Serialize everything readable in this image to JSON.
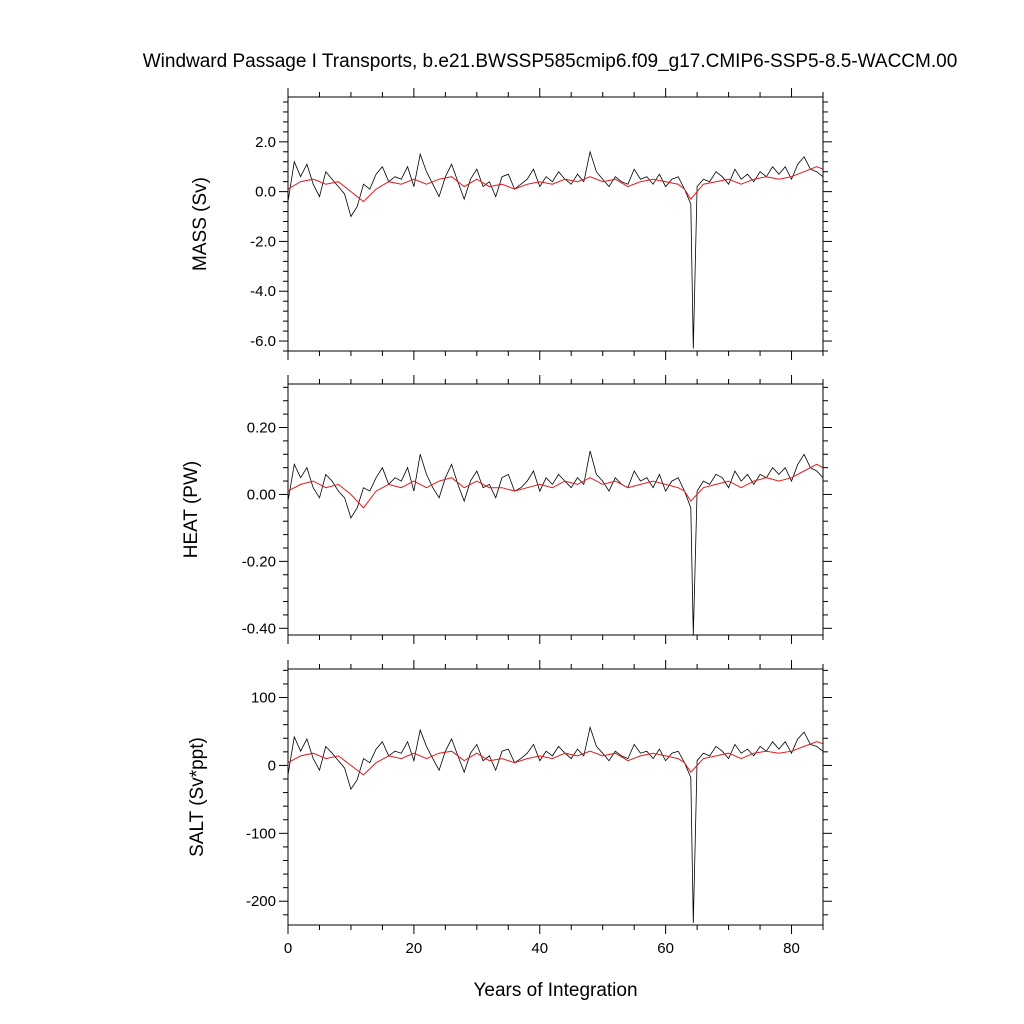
{
  "chart_data": [
    {
      "type": "line",
      "title": "Windward Passage I Transports, b.e21.BWSSP585cmip6.f09_g17.CMIP6-SSP5-8.5-WACCM.00",
      "xlabel": "",
      "ylabel": "MASS (Sv)",
      "xlim": [
        0,
        85
      ],
      "ylim": [
        -6.4,
        3.8
      ],
      "xticks": [
        0,
        20,
        40,
        60,
        80
      ],
      "xtick_labels": [
        "",
        "",
        "",
        "",
        ""
      ],
      "yticks": [
        2.0,
        0.0,
        -2.0,
        -4.0,
        -6.0
      ],
      "ytick_labels": [
        "2.0",
        "0.0",
        "-2.0",
        "-4.0",
        "-6.0"
      ],
      "grid": false,
      "legend": "none",
      "series": [
        {
          "style": "monthly",
          "color": "#000000",
          "x": [
            0,
            1,
            2,
            3,
            4,
            5,
            6,
            7,
            8,
            9,
            10,
            11,
            12,
            13,
            14,
            15,
            16,
            17,
            18,
            19,
            20,
            21,
            22,
            23,
            24,
            25,
            26,
            27,
            28,
            29,
            30,
            31,
            32,
            33,
            34,
            35,
            36,
            37,
            38,
            39,
            40,
            41,
            42,
            43,
            44,
            45,
            46,
            47,
            48,
            49,
            50,
            51,
            52,
            53,
            54,
            55,
            56,
            57,
            58,
            59,
            60,
            61,
            62,
            63,
            64,
            64.4,
            65,
            66,
            67,
            68,
            69,
            70,
            71,
            72,
            73,
            74,
            75,
            76,
            77,
            78,
            79,
            80,
            81,
            82,
            83,
            84,
            85
          ],
          "y": [
            -0.4,
            1.2,
            0.6,
            1.1,
            0.3,
            -0.2,
            0.8,
            0.5,
            0.2,
            -0.1,
            -1.0,
            -0.6,
            0.3,
            0.1,
            0.7,
            1.0,
            0.4,
            0.6,
            0.5,
            1.0,
            0.2,
            1.5,
            0.8,
            0.3,
            -0.2,
            0.6,
            1.1,
            0.4,
            -0.3,
            0.5,
            0.9,
            0.2,
            0.4,
            -0.2,
            0.6,
            0.7,
            0.1,
            0.3,
            0.5,
            0.9,
            0.2,
            0.6,
            0.4,
            0.8,
            0.5,
            0.3,
            0.7,
            0.4,
            1.6,
            0.8,
            0.5,
            0.2,
            0.6,
            0.4,
            0.3,
            0.9,
            0.5,
            0.6,
            0.3,
            0.7,
            0.2,
            0.5,
            0.6,
            0.1,
            -0.5,
            -6.3,
            0.2,
            0.5,
            0.4,
            0.8,
            0.6,
            0.3,
            0.9,
            0.5,
            0.7,
            0.4,
            0.8,
            0.6,
            1.0,
            0.7,
            1.0,
            0.5,
            1.1,
            1.4,
            0.9,
            0.8,
            0.6
          ]
        },
        {
          "style": "smoothed",
          "color": "#e31a1c",
          "x": [
            0,
            2,
            4,
            6,
            8,
            10,
            12,
            14,
            16,
            18,
            20,
            22,
            24,
            26,
            28,
            30,
            32,
            34,
            36,
            38,
            40,
            42,
            44,
            46,
            48,
            50,
            52,
            54,
            56,
            58,
            60,
            62,
            63,
            64,
            65,
            66,
            68,
            70,
            72,
            74,
            76,
            78,
            80,
            82,
            84,
            85
          ],
          "y": [
            0.1,
            0.4,
            0.5,
            0.3,
            0.4,
            0.0,
            -0.4,
            0.1,
            0.4,
            0.3,
            0.5,
            0.3,
            0.5,
            0.6,
            0.2,
            0.5,
            0.2,
            0.3,
            0.1,
            0.3,
            0.4,
            0.3,
            0.5,
            0.4,
            0.6,
            0.4,
            0.5,
            0.2,
            0.4,
            0.5,
            0.4,
            0.3,
            0.1,
            -0.3,
            0.0,
            0.3,
            0.4,
            0.5,
            0.3,
            0.5,
            0.6,
            0.5,
            0.6,
            0.8,
            1.0,
            0.9
          ]
        }
      ]
    },
    {
      "type": "line",
      "title": "",
      "xlabel": "",
      "ylabel": "HEAT (PW)",
      "xlim": [
        0,
        85
      ],
      "ylim": [
        -0.42,
        0.33
      ],
      "xticks": [
        0,
        20,
        40,
        60,
        80
      ],
      "xtick_labels": [
        "",
        "",
        "",
        "",
        ""
      ],
      "yticks": [
        0.2,
        0.0,
        -0.2,
        -0.4
      ],
      "ytick_labels": [
        "0.20",
        "0.00",
        "-0.20",
        "-0.40"
      ],
      "grid": false,
      "legend": "none",
      "series": [
        {
          "style": "monthly",
          "color": "#000000",
          "x": [
            0,
            1,
            2,
            3,
            4,
            5,
            6,
            7,
            8,
            9,
            10,
            11,
            12,
            13,
            14,
            15,
            16,
            17,
            18,
            19,
            20,
            21,
            22,
            23,
            24,
            25,
            26,
            27,
            28,
            29,
            30,
            31,
            32,
            33,
            34,
            35,
            36,
            37,
            38,
            39,
            40,
            41,
            42,
            43,
            44,
            45,
            46,
            47,
            48,
            49,
            50,
            51,
            52,
            53,
            54,
            55,
            56,
            57,
            58,
            59,
            60,
            61,
            62,
            63,
            64,
            64.4,
            65,
            66,
            67,
            68,
            69,
            70,
            71,
            72,
            73,
            74,
            75,
            76,
            77,
            78,
            79,
            80,
            81,
            82,
            83,
            84,
            85
          ],
          "y": [
            -0.02,
            0.09,
            0.05,
            0.08,
            0.02,
            -0.01,
            0.06,
            0.04,
            0.01,
            -0.01,
            -0.07,
            -0.04,
            0.02,
            0.01,
            0.05,
            0.08,
            0.03,
            0.05,
            0.04,
            0.08,
            0.01,
            0.12,
            0.06,
            0.02,
            -0.01,
            0.05,
            0.09,
            0.03,
            -0.02,
            0.04,
            0.07,
            0.02,
            0.03,
            -0.01,
            0.05,
            0.06,
            0.01,
            0.02,
            0.04,
            0.07,
            0.01,
            0.05,
            0.03,
            0.06,
            0.04,
            0.02,
            0.05,
            0.03,
            0.13,
            0.06,
            0.04,
            0.01,
            0.05,
            0.03,
            0.02,
            0.07,
            0.04,
            0.05,
            0.02,
            0.06,
            0.01,
            0.04,
            0.05,
            0.01,
            -0.04,
            -0.42,
            0.01,
            0.04,
            0.03,
            0.06,
            0.05,
            0.02,
            0.07,
            0.04,
            0.06,
            0.03,
            0.06,
            0.05,
            0.08,
            0.06,
            0.08,
            0.04,
            0.09,
            0.12,
            0.08,
            0.07,
            0.05
          ]
        },
        {
          "style": "smoothed",
          "color": "#e31a1c",
          "x": [
            0,
            2,
            4,
            6,
            8,
            10,
            12,
            14,
            16,
            18,
            20,
            22,
            24,
            26,
            28,
            30,
            32,
            34,
            36,
            38,
            40,
            42,
            44,
            46,
            48,
            50,
            52,
            54,
            56,
            58,
            60,
            62,
            63,
            64,
            65,
            66,
            68,
            70,
            72,
            74,
            76,
            78,
            80,
            82,
            84,
            85
          ],
          "y": [
            0.01,
            0.03,
            0.04,
            0.02,
            0.03,
            0.0,
            -0.04,
            0.01,
            0.03,
            0.02,
            0.04,
            0.02,
            0.04,
            0.05,
            0.02,
            0.04,
            0.02,
            0.02,
            0.01,
            0.02,
            0.03,
            0.02,
            0.04,
            0.03,
            0.05,
            0.03,
            0.04,
            0.02,
            0.03,
            0.04,
            0.03,
            0.02,
            0.01,
            -0.02,
            0.0,
            0.02,
            0.03,
            0.04,
            0.02,
            0.04,
            0.05,
            0.04,
            0.05,
            0.07,
            0.09,
            0.08
          ]
        }
      ]
    },
    {
      "type": "line",
      "title": "",
      "xlabel": "Years of Integration",
      "ylabel": "SALT (Sv*ppt)",
      "xlim": [
        0,
        85
      ],
      "ylim": [
        -235,
        142
      ],
      "xticks": [
        0,
        20,
        40,
        60,
        80
      ],
      "xtick_labels": [
        "0",
        "20",
        "40",
        "60",
        "80"
      ],
      "yticks": [
        100,
        0,
        -100,
        -200
      ],
      "ytick_labels": [
        "100",
        "0",
        "-100",
        "-200"
      ],
      "grid": false,
      "legend": "none",
      "series": [
        {
          "style": "monthly",
          "color": "#000000",
          "x": [
            0,
            1,
            2,
            3,
            4,
            5,
            6,
            7,
            8,
            9,
            10,
            11,
            12,
            13,
            14,
            15,
            16,
            17,
            18,
            19,
            20,
            21,
            22,
            23,
            24,
            25,
            26,
            27,
            28,
            29,
            30,
            31,
            32,
            33,
            34,
            35,
            36,
            37,
            38,
            39,
            40,
            41,
            42,
            43,
            44,
            45,
            46,
            47,
            48,
            49,
            50,
            51,
            52,
            53,
            54,
            55,
            56,
            57,
            58,
            59,
            60,
            61,
            62,
            63,
            64,
            64.4,
            65,
            66,
            67,
            68,
            69,
            70,
            71,
            72,
            73,
            74,
            75,
            76,
            77,
            78,
            79,
            80,
            81,
            82,
            83,
            84,
            85
          ],
          "y": [
            -14,
            42,
            21,
            39,
            10,
            -7,
            28,
            18,
            7,
            -4,
            -35,
            -21,
            10,
            4,
            24,
            35,
            14,
            21,
            18,
            35,
            7,
            52,
            28,
            10,
            -7,
            21,
            39,
            14,
            -10,
            18,
            31,
            7,
            14,
            -7,
            21,
            24,
            4,
            10,
            18,
            31,
            7,
            21,
            14,
            28,
            18,
            10,
            24,
            14,
            56,
            28,
            18,
            7,
            21,
            14,
            10,
            31,
            18,
            21,
            10,
            24,
            7,
            18,
            21,
            4,
            -18,
            -232,
            7,
            18,
            14,
            28,
            21,
            10,
            31,
            18,
            24,
            14,
            28,
            21,
            35,
            24,
            35,
            18,
            39,
            49,
            31,
            28,
            21
          ]
        },
        {
          "style": "smoothed",
          "color": "#e31a1c",
          "x": [
            0,
            2,
            4,
            6,
            8,
            10,
            12,
            14,
            16,
            18,
            20,
            22,
            24,
            26,
            28,
            30,
            32,
            34,
            36,
            38,
            40,
            42,
            44,
            46,
            48,
            50,
            52,
            54,
            56,
            58,
            60,
            62,
            63,
            64,
            65,
            66,
            68,
            70,
            72,
            74,
            76,
            78,
            80,
            82,
            84,
            85
          ],
          "y": [
            4,
            14,
            18,
            10,
            14,
            0,
            -14,
            4,
            14,
            10,
            18,
            10,
            18,
            21,
            7,
            18,
            7,
            10,
            4,
            10,
            14,
            10,
            18,
            14,
            21,
            14,
            18,
            7,
            14,
            18,
            14,
            10,
            4,
            -10,
            0,
            10,
            14,
            18,
            10,
            18,
            21,
            18,
            21,
            28,
            35,
            32
          ]
        }
      ]
    }
  ]
}
